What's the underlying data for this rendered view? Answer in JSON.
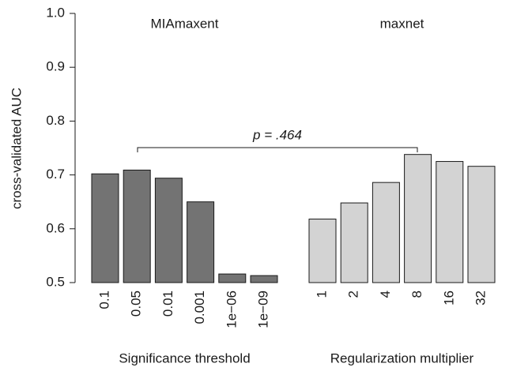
{
  "chart_data": {
    "type": "bar",
    "y_label": "cross-validated AUC",
    "ylim": [
      0.5,
      1.0
    ],
    "yticks": [
      0.5,
      0.6,
      0.7,
      0.8,
      0.9,
      {
        "value": 1.0,
        "label": "1.0"
      }
    ],
    "annotation": "p = .464",
    "groups": [
      {
        "title": "MIAmaxent",
        "x_label": "Significance threshold",
        "color": "#737373",
        "categories": [
          "0.1",
          "0.05",
          "0.01",
          "0.001",
          "1e−06",
          "1e−09"
        ],
        "values": [
          0.702,
          0.709,
          0.694,
          0.65,
          0.516,
          0.513
        ]
      },
      {
        "title": "maxnet",
        "x_label": "Regularization multiplier",
        "color": "#d3d3d3",
        "categories": [
          "1",
          "2",
          "4",
          "8",
          "16",
          "32"
        ],
        "values": [
          0.618,
          0.648,
          0.686,
          0.738,
          0.725,
          0.716
        ]
      }
    ]
  }
}
